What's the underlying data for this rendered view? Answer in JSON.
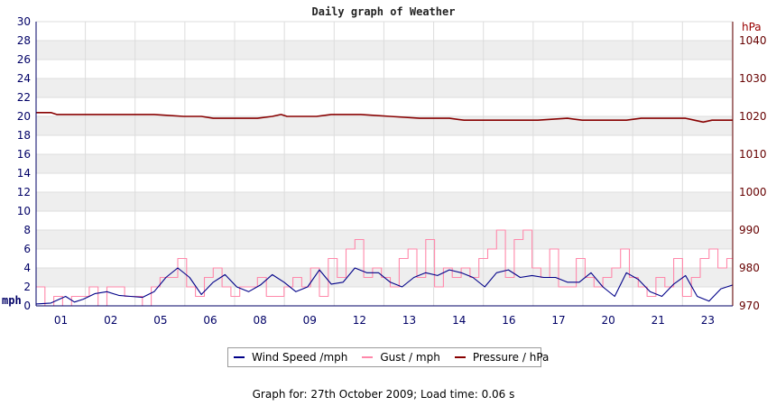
{
  "chart_data": {
    "type": "line",
    "title": "Daily graph of Weather",
    "left_axis": {
      "unit": "mph",
      "ylim": [
        0,
        30
      ],
      "ticks": [
        "0",
        "2",
        "4",
        "6",
        "8",
        "10",
        "12",
        "14",
        "16",
        "18",
        "20",
        "22",
        "24",
        "26",
        "28",
        "30"
      ]
    },
    "right_axis": {
      "unit": "hPa",
      "ylim": [
        970,
        1045
      ],
      "ticks": [
        "970",
        "980",
        "990",
        "1000",
        "1010",
        "1020",
        "1030",
        "1040"
      ]
    },
    "x_ticks": [
      "01",
      "02",
      "05",
      "06",
      "08",
      "09",
      "12",
      "13",
      "14",
      "16",
      "17",
      "20",
      "21",
      "23"
    ],
    "x_range": [
      0,
      23.6
    ],
    "grid": true,
    "legend": "bottom",
    "series": [
      {
        "name": "Wind Speed /mph",
        "axis": "left",
        "color": "#000088",
        "x": [
          0,
          0.5,
          1,
          1.3,
          1.6,
          2,
          2.4,
          2.8,
          3.2,
          3.6,
          4,
          4.4,
          4.8,
          5.2,
          5.6,
          6,
          6.4,
          6.8,
          7.2,
          7.6,
          8,
          8.4,
          8.8,
          9.2,
          9.6,
          10,
          10.4,
          10.8,
          11.2,
          11.6,
          12,
          12.4,
          12.8,
          13.2,
          13.6,
          14,
          14.4,
          14.8,
          15.2,
          15.6,
          16,
          16.4,
          16.8,
          17.2,
          17.6,
          18,
          18.4,
          18.8,
          19.2,
          19.6,
          20,
          20.4,
          20.8,
          21.2,
          21.6,
          22,
          22.4,
          22.8,
          23.2,
          23.6
        ],
        "values": [
          0.2,
          0.3,
          1.0,
          0.4,
          0.7,
          1.3,
          1.5,
          1.1,
          1.0,
          0.9,
          1.5,
          3.0,
          4.0,
          3.0,
          1.2,
          2.5,
          3.3,
          2.0,
          1.5,
          2.2,
          3.3,
          2.5,
          1.5,
          2.0,
          3.8,
          2.3,
          2.5,
          4.0,
          3.5,
          3.5,
          2.5,
          2.0,
          3.0,
          3.5,
          3.2,
          3.8,
          3.5,
          3.0,
          2.0,
          3.5,
          3.8,
          3.0,
          3.2,
          3.0,
          3.0,
          2.5,
          2.5,
          3.5,
          2.0,
          1.0,
          3.5,
          2.8,
          1.5,
          1.0,
          2.3,
          3.2,
          1.0,
          0.5,
          1.8,
          2.2
        ]
      },
      {
        "name": "Gust / mph",
        "axis": "left",
        "color": "#ff88aa",
        "x": [
          0,
          0.3,
          0.6,
          0.9,
          1.2,
          1.5,
          1.8,
          2.1,
          2.4,
          2.7,
          3.0,
          3.3,
          3.6,
          3.9,
          4.2,
          4.5,
          4.8,
          5.1,
          5.4,
          5.7,
          6.0,
          6.3,
          6.6,
          6.9,
          7.2,
          7.5,
          7.8,
          8.1,
          8.4,
          8.7,
          9.0,
          9.3,
          9.6,
          9.9,
          10.2,
          10.5,
          10.8,
          11.1,
          11.4,
          11.7,
          12.0,
          12.3,
          12.6,
          12.9,
          13.2,
          13.5,
          13.8,
          14.1,
          14.4,
          14.7,
          15.0,
          15.3,
          15.6,
          15.9,
          16.2,
          16.5,
          16.8,
          17.1,
          17.4,
          17.7,
          18.0,
          18.3,
          18.6,
          18.9,
          19.2,
          19.5,
          19.8,
          20.1,
          20.4,
          20.7,
          21.0,
          21.3,
          21.6,
          21.9,
          22.2,
          22.5,
          22.8,
          23.1,
          23.4
        ],
        "values": [
          2,
          0,
          1,
          0,
          1,
          1,
          2,
          0,
          2,
          2,
          1,
          1,
          0,
          2,
          3,
          3,
          5,
          2,
          1,
          3,
          4,
          2,
          1,
          2,
          2,
          3,
          1,
          1,
          2,
          3,
          2,
          4,
          1,
          5,
          3,
          6,
          7,
          3,
          4,
          3,
          2,
          5,
          6,
          3,
          7,
          2,
          4,
          3,
          4,
          3,
          5,
          6,
          8,
          3,
          7,
          8,
          4,
          3,
          6,
          2,
          2,
          5,
          3,
          2,
          3,
          4,
          6,
          3,
          2,
          1,
          3,
          2,
          5,
          1,
          3,
          5,
          6,
          4,
          5
        ]
      },
      {
        "name": "Pressure / hPa",
        "axis": "right",
        "color": "#880000",
        "x": [
          0,
          0.5,
          0.7,
          1,
          2,
          3,
          4,
          5,
          5.6,
          6,
          6.5,
          7,
          7.5,
          8,
          8.3,
          8.5,
          9,
          9.5,
          10,
          11,
          12,
          13,
          14,
          14.5,
          15,
          16,
          16.5,
          17,
          18,
          18.5,
          19,
          19.5,
          20,
          20.5,
          21,
          21.5,
          22,
          22.3,
          22.6,
          22.9,
          23.2,
          23.6
        ],
        "values": [
          1021,
          1021,
          1020.5,
          1020.5,
          1020.5,
          1020.5,
          1020.5,
          1020,
          1020,
          1019.5,
          1019.5,
          1019.5,
          1019.5,
          1020,
          1020.5,
          1020,
          1020,
          1020,
          1020.5,
          1020.5,
          1020,
          1019.5,
          1019.5,
          1019,
          1019,
          1019,
          1019,
          1019,
          1019.5,
          1019,
          1019,
          1019,
          1019,
          1019.5,
          1019.5,
          1019.5,
          1019.5,
          1019,
          1018.5,
          1019,
          1019,
          1019
        ]
      }
    ]
  },
  "legend": {
    "wind": "Wind Speed /mph",
    "gust": "Gust / mph",
    "pressure": "Pressure / hPa"
  },
  "footer": "Graph for: 27th October 2009; Load time: 0.06 s"
}
